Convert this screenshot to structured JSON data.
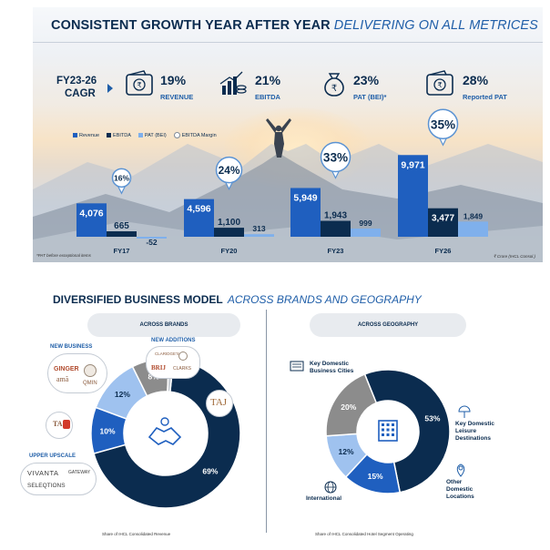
{
  "top": {
    "headline": "CONSISTENT GROWTH YEAR AFTER YEAR",
    "headline_italic": "DELIVERING ON ALL METRICES",
    "cagr_label_line1": "FY23-26",
    "cagr_label_line2": "CAGR",
    "kpis": [
      {
        "icon": "wallet-rupee-icon",
        "pct": "19%",
        "label": "REVENUE"
      },
      {
        "icon": "bar-coins-icon",
        "pct": "21%",
        "label": "EBITDA"
      },
      {
        "icon": "money-bag-rupee-icon",
        "pct": "23%",
        "label": "PAT (BEI)*"
      },
      {
        "icon": "wallet-rupee-icon",
        "pct": "28%",
        "label": "Reported PAT"
      }
    ],
    "legend": {
      "revenue": "Revenue",
      "ebitda": "EBITDA",
      "pat": "PAT (BEI)",
      "margin": "EBITDA Margin"
    },
    "footnote_left": "*PAT before exceptional items",
    "footnote_right": "₹ Crore (IHCL Consol.)",
    "colors": {
      "revenue": "#1f5fbf",
      "ebitda": "#0b2c4f",
      "pat": "#7fb0ec",
      "margin_ring": "#5b93d3"
    }
  },
  "chart_data": [
    {
      "type": "bar",
      "categories": [
        "FY17",
        "FY20",
        "FY23",
        "FY26"
      ],
      "series": [
        {
          "name": "Revenue",
          "values": [
            4076,
            4596,
            5949,
            9971
          ],
          "labels": [
            "4,076",
            "4,596",
            "5,949",
            "9,971"
          ]
        },
        {
          "name": "EBITDA",
          "values": [
            665,
            1100,
            1943,
            3477
          ],
          "labels": [
            "665",
            "1,100",
            "1,943",
            "3,477"
          ]
        },
        {
          "name": "PAT (BEI)",
          "values": [
            -52,
            313,
            999,
            1849
          ],
          "labels": [
            "-52",
            "313",
            "999",
            "1,849"
          ]
        }
      ],
      "ebitda_margin": [
        "16%",
        "24%",
        "33%",
        "35%"
      ],
      "ylim": [
        -100,
        10000
      ]
    },
    {
      "type": "pie",
      "title": "ACROSS BRANDS",
      "slices": [
        {
          "value": 69,
          "label": "69%",
          "color": "#0b2c4f"
        },
        {
          "value": 10,
          "label": "10%",
          "color": "#1f5fbf"
        },
        {
          "value": 12,
          "label": "12%",
          "color": "#9fc2ef"
        },
        {
          "value": 8,
          "label": "8%",
          "color": "#8c8c8c"
        },
        {
          "value": 1,
          "label": "1%",
          "color": "#c8cdd3"
        }
      ],
      "caption": "Share of IHCL Consolidated  Revenue"
    },
    {
      "type": "pie",
      "title": "ACROSS GEOGRAPHY",
      "slices": [
        {
          "value": 53,
          "label": "53%",
          "name": "Key Domestic Business Cities",
          "color": "#0b2c4f"
        },
        {
          "value": 15,
          "label": "15%",
          "name": "Key Domestic Leisure Destinations",
          "color": "#1f5fbf"
        },
        {
          "value": 12,
          "label": "12%",
          "name": "Other Domestic Locations",
          "color": "#9fc2ef"
        },
        {
          "value": 20,
          "label": "20%",
          "name": "International",
          "color": "#8c8c8c"
        }
      ],
      "caption": "Share of IHCL Consolidated  Hotel Segment Operating"
    }
  ],
  "bottom": {
    "headline": "DIVERSIFIED BUSINESS MODEL",
    "headline_italic": "ACROSS BRANDS AND GEOGRAPHY",
    "pill_brands": "ACROSS BRANDS",
    "pill_geo": "ACROSS GEOGRAPHY",
    "new_business": "NEW BUSINESS",
    "new_additions": "NEW ADDITIONS",
    "upper_upscale": "UPPER UPSCALE",
    "brands": {
      "qmin": "QMIN",
      "ginger": "GINGER",
      "ama": "amã",
      "claridges": "CLARIDGE'S",
      "brij": "BRIJ",
      "clarks": "CLARKS",
      "taj": "TAJ",
      "vivanta": "VIVANTA",
      "gateway": "GATEWAY",
      "seleqtions": "SELEQTIONS"
    },
    "geo_labels": {
      "business_cities": "Key Domestic\nBusiness Cities",
      "leisure": "Key Domestic\nLeisure\nDestinations",
      "other": "Other\nDomestic\nLocations",
      "international": "International"
    }
  }
}
